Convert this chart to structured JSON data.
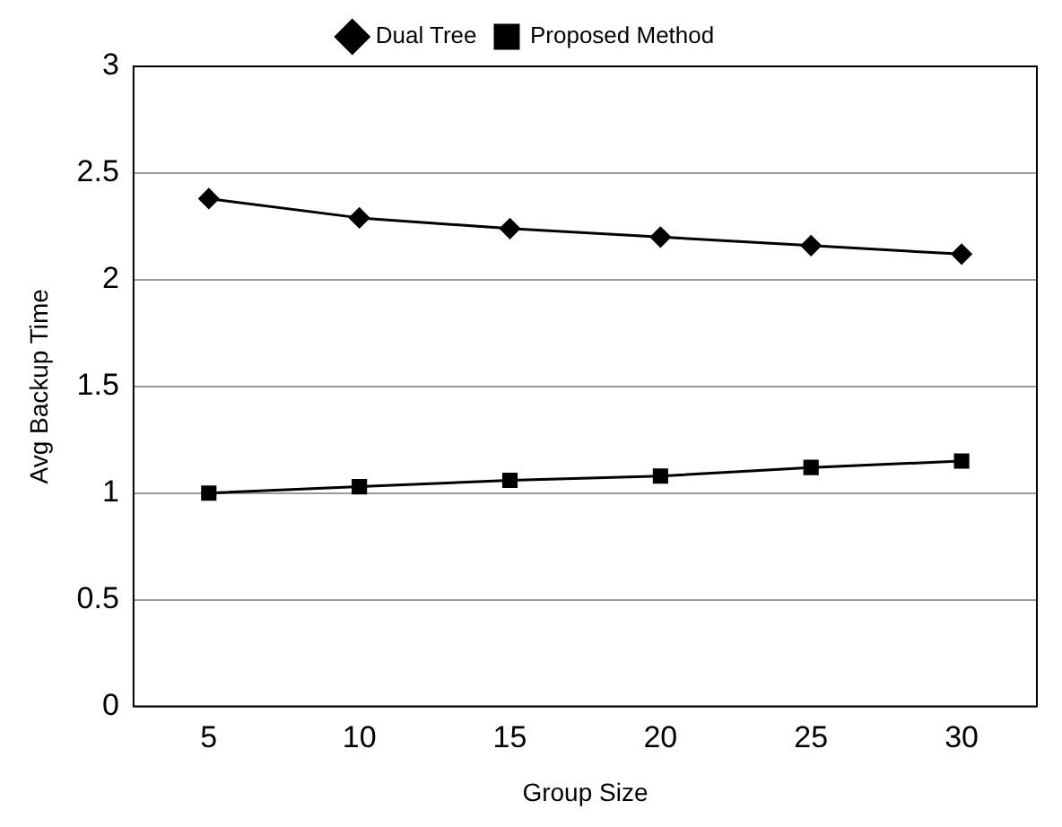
{
  "chart_data": {
    "type": "line",
    "xlabel": "Group Size",
    "ylabel": "Avg Backup Time",
    "categories": [
      "5",
      "10",
      "15",
      "20",
      "25",
      "30"
    ],
    "series": [
      {
        "name": "Dual Tree",
        "color": "#000000",
        "marker": "diamond",
        "values": [
          2.38,
          2.29,
          2.24,
          2.2,
          2.16,
          2.12
        ]
      },
      {
        "name": "Proposed Method",
        "color": "#000000",
        "marker": "square",
        "values": [
          1.0,
          1.03,
          1.06,
          1.08,
          1.12,
          1.15
        ]
      }
    ],
    "ylim": [
      0,
      3
    ],
    "yticks": [
      0,
      0.5,
      1,
      1.5,
      2,
      2.5,
      3
    ],
    "grid": "y",
    "legend": "top",
    "line_style": "solid"
  }
}
